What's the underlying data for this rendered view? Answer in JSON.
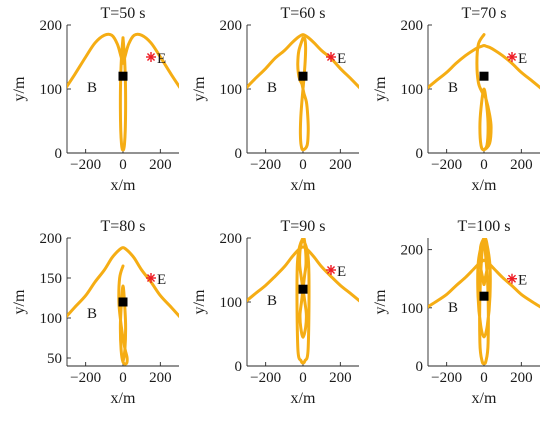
{
  "colors": {
    "trajectory": "#f5ad14",
    "target": "#ee1c25",
    "box": "#000000",
    "axis": "#262626"
  },
  "chart_data": [
    {
      "type": "line",
      "title": "T=50 s",
      "xlabel": "x/m",
      "ylabel": "y/m",
      "xlim": [
        -300,
        300
      ],
      "ylim": [
        0,
        200
      ],
      "xticks": [
        -200,
        0,
        200
      ],
      "yticks": [
        0,
        100,
        200
      ],
      "grid": false,
      "box_label": "B",
      "target_label": "E",
      "box_point": [
        0,
        120
      ],
      "target_point": [
        150,
        150
      ],
      "arch_half_width": 60,
      "lobes": 1,
      "outer": {
        "x": [
          -310,
          -260,
          -200,
          -150,
          -100,
          -60,
          -30,
          -10,
          0,
          10,
          30,
          60,
          100,
          150,
          200,
          260,
          310
        ],
        "y": [
          100,
          122,
          150,
          172,
          184,
          184,
          170,
          150,
          140,
          150,
          170,
          184,
          184,
          172,
          150,
          122,
          100
        ]
      },
      "inner": {
        "x": [
          0,
          -8,
          -13,
          -14,
          -12,
          -8,
          -4,
          0,
          4,
          8,
          12,
          14,
          13,
          8,
          0
        ],
        "y": [
          180,
          150,
          110,
          70,
          35,
          14,
          6,
          5,
          6,
          14,
          35,
          70,
          110,
          150,
          180
        ]
      }
    },
    {
      "type": "line",
      "title": "T=60 s",
      "xlabel": "x/m",
      "ylabel": "y/m",
      "xlim": [
        -300,
        300
      ],
      "ylim": [
        0,
        200
      ],
      "xticks": [
        -200,
        0,
        200
      ],
      "yticks": [
        0,
        100,
        200
      ],
      "grid": false,
      "box_label": "B",
      "target_label": "E",
      "box_point": [
        0,
        120
      ],
      "target_point": [
        150,
        150
      ],
      "arch_half_width": 60,
      "lobes": 1,
      "outer": {
        "x": [
          -310,
          -260,
          -200,
          -150,
          -100,
          -60,
          -30,
          -10,
          0,
          10,
          30,
          60,
          100,
          150,
          200,
          260,
          310
        ],
        "y": [
          100,
          115,
          132,
          148,
          160,
          172,
          180,
          184,
          185,
          184,
          180,
          172,
          160,
          148,
          132,
          115,
          100
        ]
      },
      "inner": {
        "x": [
          0,
          -22,
          -28,
          -25,
          -18,
          -6,
          0,
          6,
          18,
          25,
          28,
          22,
          0,
          -10,
          -14,
          -12,
          -6,
          0,
          6,
          12,
          14,
          10,
          0
        ],
        "y": [
          180,
          160,
          140,
          125,
          115,
          108,
          100,
          92,
          80,
          60,
          35,
          12,
          5,
          12,
          30,
          55,
          80,
          100,
          120,
          145,
          165,
          178,
          180
        ]
      }
    },
    {
      "type": "line",
      "title": "T=70 s",
      "xlabel": "x/m",
      "ylabel": "y/m",
      "xlim": [
        -300,
        300
      ],
      "ylim": [
        0,
        200
      ],
      "xticks": [
        -200,
        0,
        200
      ],
      "yticks": [
        0,
        100,
        200
      ],
      "grid": false,
      "box_label": "B",
      "target_label": "E",
      "box_point": [
        0,
        120
      ],
      "target_point": [
        150,
        150
      ],
      "arch_half_width": 60,
      "lobes": 2,
      "outer": {
        "x": [
          -310,
          -260,
          -200,
          -150,
          -100,
          -60,
          -30,
          -10,
          0,
          10,
          30,
          60,
          100,
          150,
          200,
          260,
          310
        ],
        "y": [
          100,
          112,
          126,
          140,
          152,
          160,
          165,
          167,
          168,
          167,
          165,
          160,
          152,
          140,
          126,
          112,
          100
        ]
      },
      "inner": {
        "x": [
          0,
          -30,
          -38,
          -30,
          -10,
          0,
          10,
          30,
          38,
          30,
          0,
          -16,
          -22,
          -16,
          0,
          16,
          22,
          16,
          0
        ],
        "y": [
          185,
          170,
          140,
          110,
          95,
          90,
          85,
          60,
          40,
          15,
          5,
          12,
          40,
          70,
          100,
          70,
          40,
          12,
          5
        ]
      }
    },
    {
      "type": "line",
      "title": "T=80 s",
      "xlabel": "x/m",
      "ylabel": "y/m",
      "xlim": [
        -300,
        300
      ],
      "ylim": [
        40,
        200
      ],
      "xticks": [
        -200,
        0,
        200
      ],
      "yticks": [
        50,
        100,
        150,
        200
      ],
      "grid": false,
      "box_label": "B",
      "target_label": "E",
      "box_point": [
        0,
        120
      ],
      "target_point": [
        150,
        150
      ],
      "arch_half_width": 60,
      "lobes": 2,
      "outer": {
        "x": [
          -310,
          -260,
          -200,
          -150,
          -100,
          -60,
          -30,
          -10,
          0,
          10,
          30,
          60,
          100,
          150,
          200,
          260,
          310
        ],
        "y": [
          100,
          113,
          128,
          145,
          160,
          175,
          183,
          187,
          188,
          187,
          183,
          175,
          160,
          145,
          128,
          113,
          100
        ]
      },
      "inner": {
        "x": [
          0,
          -18,
          -22,
          -12,
          0,
          12,
          22,
          18,
          0,
          -10,
          -14,
          -8,
          0,
          8,
          14,
          10,
          0
        ],
        "y": [
          165,
          150,
          120,
          95,
          75,
          60,
          50,
          43,
          45,
          60,
          90,
          120,
          140,
          120,
          90,
          60,
          45
        ]
      }
    },
    {
      "type": "line",
      "title": "T=90 s",
      "xlabel": "x/m",
      "ylabel": "y/m",
      "xlim": [
        -300,
        300
      ],
      "ylim": [
        0,
        200
      ],
      "xticks": [
        -200,
        0,
        200
      ],
      "yticks": [
        0,
        100,
        200
      ],
      "grid": false,
      "box_label": "B",
      "target_label": "E",
      "box_point": [
        0,
        120
      ],
      "target_point": [
        150,
        150
      ],
      "arch_half_width": 60,
      "lobes": 3,
      "outer": {
        "x": [
          -310,
          -260,
          -200,
          -150,
          -100,
          -60,
          -30,
          -10,
          0,
          10,
          30,
          60,
          100,
          150,
          200,
          260,
          310
        ],
        "y": [
          100,
          112,
          126,
          140,
          155,
          170,
          180,
          185,
          186,
          185,
          180,
          170,
          155,
          140,
          126,
          112,
          100
        ]
      },
      "inner": {
        "x": [
          0,
          -14,
          -18,
          -10,
          0,
          10,
          18,
          14,
          0,
          -12,
          -16,
          -8,
          0,
          8,
          16,
          12,
          0,
          -30,
          -28,
          -10,
          0,
          10,
          28,
          30,
          0
        ],
        "y": [
          200,
          185,
          160,
          140,
          120,
          100,
          80,
          60,
          45,
          60,
          80,
          100,
          120,
          140,
          160,
          185,
          200,
          160,
          30,
          8,
          5,
          8,
          30,
          160,
          200
        ]
      }
    },
    {
      "type": "line",
      "title": "T=100 s",
      "xlabel": "x/m",
      "ylabel": "y/m",
      "xlim": [
        -300,
        300
      ],
      "ylim": [
        0,
        220
      ],
      "xticks": [
        -200,
        0,
        200
      ],
      "yticks": [
        0,
        100,
        200
      ],
      "grid": false,
      "box_label": "B",
      "target_label": "E",
      "box_point": [
        0,
        120
      ],
      "target_point": [
        150,
        150
      ],
      "arch_half_width": 60,
      "lobes": 3,
      "outer": {
        "x": [
          -310,
          -260,
          -200,
          -150,
          -100,
          -60,
          -30,
          -10,
          0,
          10,
          30,
          60,
          100,
          150,
          200,
          260,
          310
        ],
        "y": [
          100,
          110,
          123,
          138,
          152,
          165,
          175,
          180,
          182,
          180,
          175,
          165,
          152,
          138,
          123,
          110,
          100
        ]
      },
      "inner": {
        "x": [
          0,
          -18,
          -20,
          -6,
          0,
          6,
          20,
          18,
          0,
          -30,
          -32,
          -18,
          0,
          18,
          32,
          30,
          0,
          -20,
          -22,
          -10,
          0,
          10,
          22,
          20,
          0
        ],
        "y": [
          220,
          205,
          175,
          150,
          140,
          150,
          175,
          205,
          220,
          180,
          120,
          70,
          50,
          70,
          120,
          180,
          220,
          140,
          40,
          8,
          5,
          8,
          40,
          140,
          220
        ]
      }
    }
  ]
}
